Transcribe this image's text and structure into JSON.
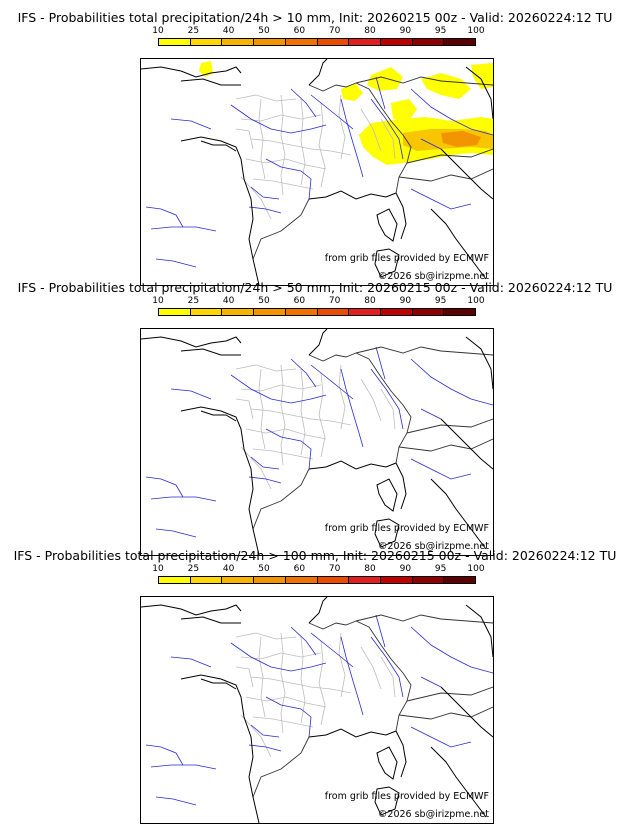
{
  "legend": {
    "ticks": [
      "10",
      "25",
      "40",
      "50",
      "60",
      "70",
      "80",
      "90",
      "95",
      "100"
    ],
    "colors": [
      "#ffff00",
      "#ffd700",
      "#f6b400",
      "#f29400",
      "#ef7200",
      "#ea4c00",
      "#e02020",
      "#bc0000",
      "#8c0000",
      "#5a0000"
    ]
  },
  "panels": [
    {
      "title": "IFS - Probabilities total precipitation/24h > 10 mm, Init: 20260215 00z - Valid: 20260224:12 TU",
      "threshold_mm": 10,
      "has_precip": true,
      "credit_grib": "from grib files provided by ECMWF",
      "credit_copy": "©2026 sb@irizpme.net"
    },
    {
      "title": "IFS - Probabilities total precipitation/24h > 50 mm, Init: 20260215 00z - Valid: 20260224:12 TU",
      "threshold_mm": 50,
      "has_precip": false,
      "credit_grib": "from grib files provided by ECMWF",
      "credit_copy": "©2026 sb@irizpme.net"
    },
    {
      "title": "IFS - Probabilities total precipitation/24h > 100 mm, Init: 20260215 00z - Valid: 20260224:12 TU",
      "threshold_mm": 100,
      "has_precip": false,
      "credit_grib": "from grib files provided by ECMWF",
      "credit_copy": "©2026 sb@irizpme.net"
    }
  ]
}
